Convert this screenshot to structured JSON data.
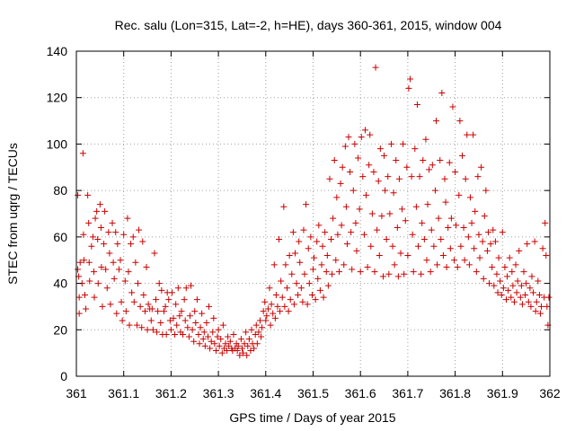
{
  "chart_data": {
    "type": "scatter",
    "title": "Rec. salu (Lon=315, Lat=-2, h=HE), days 360-361, 2015, window 004",
    "xlabel": "GPS time / Days of year 2015",
    "ylabel": "STEC from uqrg / TECUs",
    "xlim": [
      361,
      362
    ],
    "ylim": [
      0,
      140
    ],
    "xticks": [
      "361",
      "361.1",
      "361.2",
      "361.3",
      "361.4",
      "361.5",
      "361.6",
      "361.7",
      "361.8",
      "361.9",
      "362"
    ],
    "yticks": [
      "0",
      "20",
      "40",
      "60",
      "80",
      "100",
      "120",
      "140"
    ],
    "grid": true,
    "marker": "+",
    "color": "#cc0000",
    "points": [
      [
        361.003,
        78
      ],
      [
        361.003,
        46
      ],
      [
        361.005,
        43
      ],
      [
        361.006,
        27
      ],
      [
        361.006,
        34
      ],
      [
        361.008,
        49
      ],
      [
        361.012,
        40
      ],
      [
        361.014,
        96
      ],
      [
        361.015,
        61
      ],
      [
        361.016,
        50
      ],
      [
        361.018,
        35
      ],
      [
        361.02,
        29
      ],
      [
        361.024,
        78
      ],
      [
        361.026,
        66
      ],
      [
        361.027,
        49
      ],
      [
        361.028,
        41
      ],
      [
        361.032,
        56
      ],
      [
        361.035,
        60
      ],
      [
        361.037,
        45
      ],
      [
        361.038,
        34
      ],
      [
        361.04,
        68
      ],
      [
        361.043,
        71
      ],
      [
        361.045,
        59
      ],
      [
        361.046,
        40
      ],
      [
        361.05,
        74
      ],
      [
        361.052,
        64
      ],
      [
        361.053,
        47
      ],
      [
        361.055,
        30
      ],
      [
        361.058,
        57
      ],
      [
        361.06,
        71
      ],
      [
        361.062,
        46
      ],
      [
        361.065,
        38
      ],
      [
        361.068,
        62
      ],
      [
        361.07,
        53
      ],
      [
        361.072,
        31
      ],
      [
        361.076,
        66
      ],
      [
        361.078,
        49
      ],
      [
        361.08,
        42
      ],
      [
        361.083,
        62
      ],
      [
        361.085,
        27
      ],
      [
        361.087,
        57
      ],
      [
        361.09,
        46
      ],
      [
        361.093,
        50
      ],
      [
        361.095,
        32
      ],
      [
        361.097,
        24
      ],
      [
        361.1,
        61
      ],
      [
        361.103,
        41
      ],
      [
        361.105,
        28
      ],
      [
        361.108,
        68
      ],
      [
        361.11,
        45
      ],
      [
        361.112,
        22
      ],
      [
        361.115,
        57
      ],
      [
        361.117,
        36
      ],
      [
        361.12,
        60
      ],
      [
        361.122,
        32
      ],
      [
        361.125,
        49
      ],
      [
        361.128,
        22
      ],
      [
        361.13,
        40
      ],
      [
        361.132,
        63
      ],
      [
        361.135,
        30
      ],
      [
        361.138,
        21
      ],
      [
        361.14,
        58
      ],
      [
        361.142,
        35
      ],
      [
        361.145,
        28
      ],
      [
        361.148,
        47
      ],
      [
        361.15,
        20
      ],
      [
        361.152,
        31
      ],
      [
        361.155,
        29
      ],
      [
        361.158,
        24
      ],
      [
        361.16,
        29
      ],
      [
        361.162,
        20
      ],
      [
        361.165,
        53
      ],
      [
        361.168,
        33
      ],
      [
        361.17,
        19
      ],
      [
        361.172,
        28
      ],
      [
        361.175,
        40
      ],
      [
        361.178,
        23
      ],
      [
        361.18,
        37
      ],
      [
        361.182,
        18
      ],
      [
        361.185,
        28
      ],
      [
        361.188,
        30
      ],
      [
        361.19,
        18
      ],
      [
        361.192,
        36
      ],
      [
        361.195,
        33
      ],
      [
        361.198,
        24
      ],
      [
        361.2,
        20
      ],
      [
        361.202,
        36
      ],
      [
        361.205,
        25
      ],
      [
        361.208,
        18
      ],
      [
        361.21,
        31
      ],
      [
        361.212,
        22
      ],
      [
        361.215,
        38
      ],
      [
        361.218,
        26
      ],
      [
        361.22,
        19
      ],
      [
        361.222,
        28
      ],
      [
        361.225,
        18
      ],
      [
        361.228,
        33
      ],
      [
        361.23,
        24
      ],
      [
        361.232,
        38
      ],
      [
        361.235,
        21
      ],
      [
        361.238,
        17
      ],
      [
        361.24,
        26
      ],
      [
        361.242,
        39
      ],
      [
        361.245,
        20
      ],
      [
        361.248,
        15
      ],
      [
        361.25,
        28
      ],
      [
        361.252,
        23
      ],
      [
        361.255,
        33
      ],
      [
        361.258,
        18
      ],
      [
        361.26,
        14
      ],
      [
        361.262,
        21
      ],
      [
        361.265,
        27
      ],
      [
        361.268,
        16
      ],
      [
        361.27,
        19
      ],
      [
        361.272,
        13
      ],
      [
        361.275,
        23
      ],
      [
        361.278,
        17
      ],
      [
        361.28,
        30
      ],
      [
        361.282,
        12
      ],
      [
        361.285,
        15
      ],
      [
        361.288,
        19
      ],
      [
        361.29,
        25
      ],
      [
        361.292,
        14
      ],
      [
        361.295,
        11
      ],
      [
        361.298,
        17
      ],
      [
        361.3,
        20
      ],
      [
        361.302,
        13
      ],
      [
        361.305,
        16
      ],
      [
        361.308,
        10
      ],
      [
        361.31,
        22
      ],
      [
        361.312,
        12
      ],
      [
        361.315,
        14
      ],
      [
        361.318,
        11
      ],
      [
        361.32,
        17
      ],
      [
        361.322,
        13
      ],
      [
        361.325,
        15
      ],
      [
        361.328,
        12
      ],
      [
        361.33,
        11
      ],
      [
        361.332,
        18
      ],
      [
        361.335,
        12
      ],
      [
        361.338,
        14
      ],
      [
        361.34,
        11
      ],
      [
        361.342,
        13
      ],
      [
        361.345,
        9
      ],
      [
        361.348,
        16
      ],
      [
        361.35,
        12
      ],
      [
        361.352,
        10
      ],
      [
        361.355,
        14
      ],
      [
        361.358,
        19
      ],
      [
        361.36,
        9
      ],
      [
        361.362,
        13
      ],
      [
        361.365,
        16
      ],
      [
        361.368,
        11
      ],
      [
        361.37,
        20
      ],
      [
        361.372,
        14
      ],
      [
        361.375,
        12
      ],
      [
        361.378,
        18
      ],
      [
        361.38,
        22
      ],
      [
        361.382,
        14
      ],
      [
        361.385,
        19
      ],
      [
        361.388,
        24
      ],
      [
        361.39,
        17
      ],
      [
        361.392,
        21
      ],
      [
        361.395,
        28
      ],
      [
        361.398,
        32
      ],
      [
        361.4,
        24
      ],
      [
        361.402,
        26
      ],
      [
        361.405,
        29
      ],
      [
        361.408,
        38
      ],
      [
        361.41,
        22
      ],
      [
        361.412,
        31
      ],
      [
        361.415,
        27
      ],
      [
        361.418,
        48
      ],
      [
        361.42,
        25
      ],
      [
        361.422,
        35
      ],
      [
        361.425,
        30
      ],
      [
        361.428,
        59
      ],
      [
        361.43,
        28
      ],
      [
        361.432,
        41
      ],
      [
        361.435,
        34
      ],
      [
        361.438,
        73
      ],
      [
        361.44,
        30
      ],
      [
        361.442,
        48
      ],
      [
        361.445,
        38
      ],
      [
        361.448,
        28
      ],
      [
        361.45,
        52
      ],
      [
        361.452,
        33
      ],
      [
        361.455,
        44
      ],
      [
        361.458,
        62
      ],
      [
        361.46,
        31
      ],
      [
        361.462,
        53
      ],
      [
        361.465,
        40
      ],
      [
        361.468,
        35
      ],
      [
        361.47,
        58
      ],
      [
        361.472,
        49
      ],
      [
        361.475,
        38
      ],
      [
        361.478,
        32
      ],
      [
        361.48,
        63
      ],
      [
        361.482,
        44
      ],
      [
        361.485,
        74
      ],
      [
        361.488,
        31
      ],
      [
        361.49,
        55
      ],
      [
        361.492,
        40
      ],
      [
        361.495,
        60
      ],
      [
        361.498,
        35
      ],
      [
        361.5,
        46
      ],
      [
        361.502,
        51
      ],
      [
        361.505,
        33
      ],
      [
        361.508,
        58
      ],
      [
        361.51,
        42
      ],
      [
        361.512,
        65
      ],
      [
        361.515,
        37
      ],
      [
        361.518,
        48
      ],
      [
        361.52,
        56
      ],
      [
        361.522,
        34
      ],
      [
        361.525,
        62
      ],
      [
        361.528,
        45
      ],
      [
        361.53,
        52
      ],
      [
        361.532,
        39
      ],
      [
        361.535,
        85
      ],
      [
        361.538,
        59
      ],
      [
        361.54,
        44
      ],
      [
        361.542,
        68
      ],
      [
        361.545,
        93
      ],
      [
        361.548,
        50
      ],
      [
        361.55,
        77
      ],
      [
        361.552,
        61
      ],
      [
        361.555,
        45
      ],
      [
        361.558,
        83
      ],
      [
        361.56,
        65
      ],
      [
        361.562,
        90
      ],
      [
        361.565,
        48
      ],
      [
        361.568,
        99
      ],
      [
        361.57,
        73
      ],
      [
        361.572,
        57
      ],
      [
        361.575,
        103
      ],
      [
        361.578,
        88
      ],
      [
        361.58,
        62
      ],
      [
        361.582,
        46
      ],
      [
        361.585,
        80
      ],
      [
        361.588,
        100
      ],
      [
        361.59,
        66
      ],
      [
        361.592,
        54
      ],
      [
        361.595,
        94
      ],
      [
        361.598,
        72
      ],
      [
        361.6,
        45
      ],
      [
        361.602,
        103
      ],
      [
        361.605,
        86
      ],
      [
        361.608,
        61
      ],
      [
        361.61,
        106
      ],
      [
        361.612,
        78
      ],
      [
        361.615,
        47
      ],
      [
        361.618,
        91
      ],
      [
        361.62,
        104
      ],
      [
        361.622,
        56
      ],
      [
        361.625,
        70
      ],
      [
        361.628,
        88
      ],
      [
        361.63,
        45
      ],
      [
        361.632,
        133
      ],
      [
        361.635,
        63
      ],
      [
        361.638,
        84
      ],
      [
        361.64,
        52
      ],
      [
        361.642,
        98
      ],
      [
        361.645,
        69
      ],
      [
        361.648,
        43
      ],
      [
        361.65,
        95
      ],
      [
        361.652,
        80
      ],
      [
        361.655,
        59
      ],
      [
        361.658,
        86
      ],
      [
        361.66,
        44
      ],
      [
        361.662,
        70
      ],
      [
        361.665,
        100
      ],
      [
        361.668,
        56
      ],
      [
        361.67,
        79
      ],
      [
        361.672,
        48
      ],
      [
        361.675,
        93
      ],
      [
        361.678,
        64
      ],
      [
        361.68,
        43
      ],
      [
        361.682,
        85
      ],
      [
        361.685,
        53
      ],
      [
        361.688,
        72
      ],
      [
        361.69,
        100
      ],
      [
        361.692,
        44
      ],
      [
        361.695,
        67
      ],
      [
        361.698,
        90
      ],
      [
        361.7,
        52
      ],
      [
        361.702,
        124
      ],
      [
        361.705,
        128
      ],
      [
        361.708,
        86
      ],
      [
        361.71,
        61
      ],
      [
        361.712,
        45
      ],
      [
        361.715,
        98
      ],
      [
        361.718,
        73
      ],
      [
        361.72,
        117
      ],
      [
        361.722,
        56
      ],
      [
        361.725,
        86
      ],
      [
        361.728,
        44
      ],
      [
        361.73,
        66
      ],
      [
        361.732,
        93
      ],
      [
        361.735,
        59
      ],
      [
        361.738,
        102
      ],
      [
        361.74,
        50
      ],
      [
        361.742,
        74
      ],
      [
        361.745,
        89
      ],
      [
        361.748,
        45
      ],
      [
        361.75,
        63
      ],
      [
        361.752,
        91
      ],
      [
        361.755,
        56
      ],
      [
        361.758,
        80
      ],
      [
        361.76,
        110
      ],
      [
        361.762,
        48
      ],
      [
        361.765,
        68
      ],
      [
        361.768,
        93
      ],
      [
        361.77,
        59
      ],
      [
        361.772,
        122
      ],
      [
        361.775,
        52
      ],
      [
        361.778,
        85
      ],
      [
        361.78,
        75
      ],
      [
        361.782,
        47
      ],
      [
        361.785,
        64
      ],
      [
        361.788,
        92
      ],
      [
        361.79,
        55
      ],
      [
        361.792,
        68
      ],
      [
        361.795,
        116
      ],
      [
        361.798,
        50
      ],
      [
        361.8,
        88
      ],
      [
        361.802,
        65
      ],
      [
        361.805,
        47
      ],
      [
        361.808,
        78
      ],
      [
        361.81,
        110
      ],
      [
        361.812,
        56
      ],
      [
        361.815,
        95
      ],
      [
        361.818,
        64
      ],
      [
        361.82,
        50
      ],
      [
        361.822,
        85
      ],
      [
        361.825,
        104
      ],
      [
        361.828,
        60
      ],
      [
        361.83,
        48
      ],
      [
        361.832,
        77
      ],
      [
        361.835,
        66
      ],
      [
        361.838,
        104
      ],
      [
        361.84,
        55
      ],
      [
        361.842,
        71
      ],
      [
        361.845,
        45
      ],
      [
        361.848,
        86
      ],
      [
        361.85,
        61
      ],
      [
        361.852,
        51
      ],
      [
        361.855,
        90
      ],
      [
        361.858,
        58
      ],
      [
        361.86,
        42
      ],
      [
        361.862,
        69
      ],
      [
        361.865,
        80
      ],
      [
        361.868,
        54
      ],
      [
        361.87,
        62
      ],
      [
        361.872,
        40
      ],
      [
        361.875,
        57
      ],
      [
        361.878,
        47
      ],
      [
        361.88,
        63
      ],
      [
        361.882,
        39
      ],
      [
        361.885,
        58
      ],
      [
        361.888,
        44
      ],
      [
        361.89,
        36
      ],
      [
        361.892,
        51
      ],
      [
        361.895,
        41
      ],
      [
        361.898,
        35
      ],
      [
        361.9,
        62
      ],
      [
        361.902,
        38
      ],
      [
        361.905,
        47
      ],
      [
        361.908,
        33
      ],
      [
        361.91,
        43
      ],
      [
        361.912,
        37
      ],
      [
        361.915,
        51
      ],
      [
        361.918,
        34
      ],
      [
        361.92,
        45
      ],
      [
        361.922,
        39
      ],
      [
        361.925,
        32
      ],
      [
        361.928,
        48
      ],
      [
        361.93,
        36
      ],
      [
        361.932,
        41
      ],
      [
        361.935,
        54
      ],
      [
        361.938,
        34
      ],
      [
        361.94,
        39
      ],
      [
        361.942,
        31
      ],
      [
        361.945,
        45
      ],
      [
        361.948,
        35
      ],
      [
        361.95,
        40
      ],
      [
        361.952,
        57
      ],
      [
        361.955,
        32
      ],
      [
        361.958,
        38
      ],
      [
        361.96,
        30
      ],
      [
        361.962,
        43
      ],
      [
        361.965,
        36
      ],
      [
        361.968,
        58
      ],
      [
        361.97,
        28
      ],
      [
        361.972,
        32
      ],
      [
        361.975,
        41
      ],
      [
        361.978,
        35
      ],
      [
        361.98,
        27
      ],
      [
        361.982,
        30
      ],
      [
        361.985,
        55
      ],
      [
        361.988,
        34
      ],
      [
        361.99,
        66
      ],
      [
        361.992,
        52
      ],
      [
        361.994,
        30
      ],
      [
        361.996,
        22
      ],
      [
        361.998,
        34
      ]
    ]
  }
}
